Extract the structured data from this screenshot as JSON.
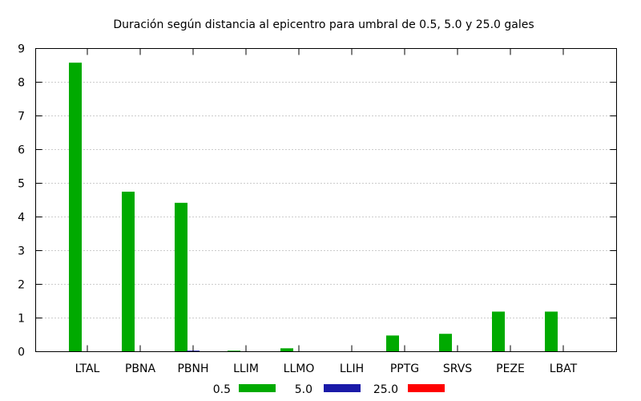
{
  "chart_data": {
    "type": "bar",
    "title": "Duración según distancia al epicentro para umbral de 0.5, 5.0 y 25.0 gales",
    "xlabel": "",
    "ylabel": "",
    "categories": [
      "LTAL",
      "PBNA",
      "PBNH",
      "LLIM",
      "LLMO",
      "LLIH",
      "PPTG",
      "SRVS",
      "PEZE",
      "LBAT"
    ],
    "ylim": [
      0,
      9
    ],
    "yticks": [
      "0",
      "1",
      "2",
      "3",
      "4",
      "5",
      "6",
      "7",
      "8",
      "9"
    ],
    "grid": true,
    "legend_position": "bottom",
    "series": [
      {
        "name": "0.5",
        "color": "#00aa00",
        "values": [
          8.58,
          4.75,
          4.42,
          0.03,
          0.1,
          0,
          0.48,
          0.53,
          1.19,
          1.19
        ]
      },
      {
        "name": "5.0",
        "color": "#1a1aa8",
        "values": [
          0,
          0,
          0.03,
          0,
          0,
          0,
          0,
          0,
          0,
          0
        ]
      },
      {
        "name": "25.0",
        "color": "#ff0000",
        "values": [
          0,
          0,
          0,
          0,
          0,
          0,
          0,
          0,
          0,
          0
        ]
      }
    ]
  }
}
